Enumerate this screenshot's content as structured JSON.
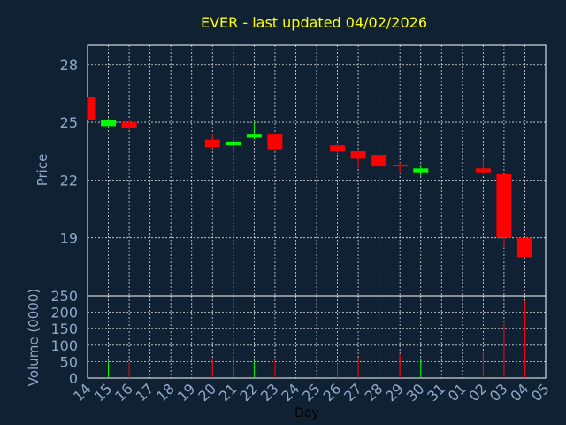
{
  "chart_data": [
    {
      "type": "candlestick",
      "title": "EVER - last updated 04/02/2026",
      "ylabel": "Price",
      "ylim": [
        16,
        29
      ],
      "yticks": [
        19,
        22,
        25,
        28
      ],
      "grid": true,
      "x_categories": [
        "14",
        "15",
        "16",
        "17",
        "18",
        "19",
        "20",
        "21",
        "22",
        "23",
        "24",
        "25",
        "26",
        "27",
        "28",
        "29",
        "30",
        "31",
        "01",
        "02",
        "03",
        "04",
        "05"
      ],
      "up_color": "#00ff00",
      "down_color": "#ff0000",
      "candles": [
        {
          "x": "14",
          "open": 26.3,
          "high": 26.3,
          "low": 25.1,
          "close": 25.1
        },
        {
          "x": "15",
          "open": 24.8,
          "high": 25.2,
          "low": 24.8,
          "close": 25.1
        },
        {
          "x": "16",
          "open": 25.0,
          "high": 25.1,
          "low": 24.6,
          "close": 24.7
        },
        {
          "x": "20",
          "open": 24.1,
          "high": 24.4,
          "low": 23.6,
          "close": 23.7
        },
        {
          "x": "21",
          "open": 23.8,
          "high": 24.1,
          "low": 23.5,
          "close": 24.0
        },
        {
          "x": "22",
          "open": 24.2,
          "high": 25.0,
          "low": 24.1,
          "close": 24.4
        },
        {
          "x": "23",
          "open": 24.4,
          "high": 24.4,
          "low": 23.5,
          "close": 23.6
        },
        {
          "x": "26",
          "open": 23.8,
          "high": 23.9,
          "low": 23.3,
          "close": 23.5
        },
        {
          "x": "27",
          "open": 23.5,
          "high": 23.6,
          "low": 22.6,
          "close": 23.1
        },
        {
          "x": "28",
          "open": 23.3,
          "high": 23.5,
          "low": 22.8,
          "close": 22.7
        },
        {
          "x": "29",
          "open": 22.8,
          "high": 22.9,
          "low": 22.4,
          "close": 22.7
        },
        {
          "x": "30",
          "open": 22.4,
          "high": 22.8,
          "low": 22.2,
          "close": 22.6
        },
        {
          "x": "02",
          "open": 22.6,
          "high": 23.1,
          "low": 22.3,
          "close": 22.4
        },
        {
          "x": "03",
          "open": 22.3,
          "high": 22.3,
          "low": 18.5,
          "close": 19.0
        },
        {
          "x": "04",
          "open": 19.0,
          "high": 19.0,
          "low": 18.0,
          "close": 18.0
        }
      ]
    },
    {
      "type": "bar",
      "ylabel": "Volume (0000)",
      "xlabel": "Day",
      "ylim": [
        0,
        250
      ],
      "yticks": [
        0,
        50,
        100,
        150,
        200,
        250
      ],
      "grid": true,
      "categories": [
        "14",
        "15",
        "16",
        "17",
        "18",
        "19",
        "20",
        "21",
        "22",
        "23",
        "24",
        "25",
        "26",
        "27",
        "28",
        "29",
        "30",
        "31",
        "01",
        "02",
        "03",
        "04",
        "05"
      ],
      "bars": [
        {
          "x": "15",
          "value": 50,
          "color": "#00ff00"
        },
        {
          "x": "16",
          "value": 48,
          "color": "#ff0000"
        },
        {
          "x": "20",
          "value": 60,
          "color": "#ff0000"
        },
        {
          "x": "21",
          "value": 58,
          "color": "#00ff00"
        },
        {
          "x": "22",
          "value": 52,
          "color": "#00ff00"
        },
        {
          "x": "23",
          "value": 55,
          "color": "#ff0000"
        },
        {
          "x": "26",
          "value": 45,
          "color": "#ff0000"
        },
        {
          "x": "27",
          "value": 62,
          "color": "#ff0000"
        },
        {
          "x": "28",
          "value": 68,
          "color": "#ff0000"
        },
        {
          "x": "29",
          "value": 72,
          "color": "#ff0000"
        },
        {
          "x": "30",
          "value": 55,
          "color": "#00ff00"
        },
        {
          "x": "02",
          "value": 80,
          "color": "#ff0000"
        },
        {
          "x": "03",
          "value": 165,
          "color": "#ff0000"
        },
        {
          "x": "04",
          "value": 235,
          "color": "#ff0000"
        }
      ]
    }
  ]
}
